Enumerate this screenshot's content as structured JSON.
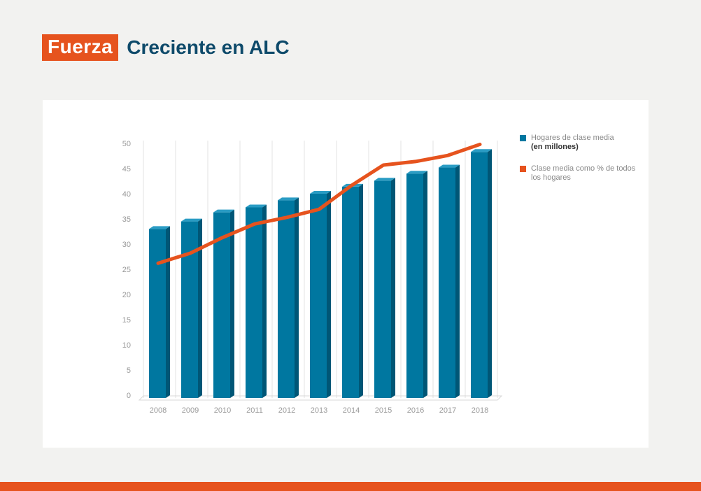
{
  "header": {
    "tag": "Fuerza",
    "title": "Creciente en ALC"
  },
  "legend": {
    "bar_label": "Hogares de clase media",
    "bar_label_bold": "(en millones)",
    "line_label": "Clase media como % de todos los hogares"
  },
  "colors": {
    "bar_front": "#0077a0",
    "bar_side": "#005676",
    "bar_top": "#2a9cc4",
    "line": "#e6531e",
    "accent": "#e6531e",
    "title": "#0e4a6a"
  },
  "chart_data": {
    "type": "bar",
    "categories": [
      "2008",
      "2009",
      "2010",
      "2011",
      "2012",
      "2013",
      "2014",
      "2015",
      "2016",
      "2017",
      "2018"
    ],
    "series": [
      {
        "name": "Hogares de clase media (en millones)",
        "type": "bar",
        "values": [
          33,
          34.5,
          36.3,
          37.3,
          38.7,
          40,
          41.4,
          42.6,
          44,
          45.2,
          48.3
        ]
      },
      {
        "name": "Clase media como % de todos los hogares",
        "type": "line",
        "values": [
          26.2,
          28.2,
          31.3,
          34,
          35.3,
          36.9,
          41.6,
          45.7,
          46.4,
          47.6,
          49.8
        ]
      }
    ],
    "yticks": [
      "0",
      "5",
      "10",
      "15",
      "20",
      "25",
      "30",
      "35",
      "40",
      "45",
      "50"
    ],
    "ylim": [
      0,
      50
    ],
    "grid": "vertical",
    "legend_position": "right"
  }
}
